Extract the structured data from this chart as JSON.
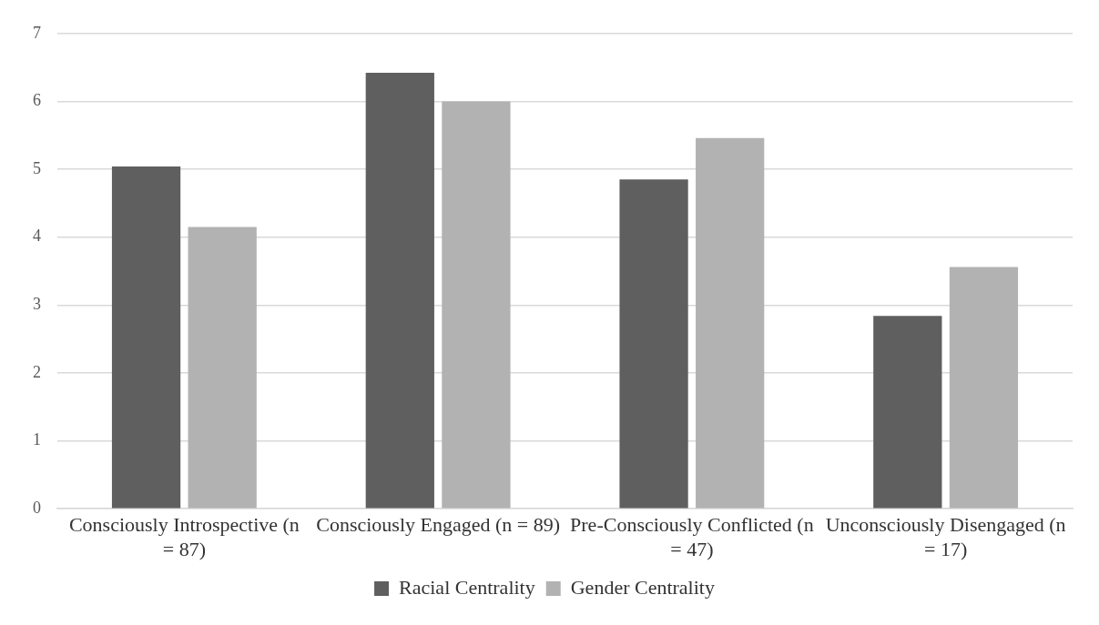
{
  "chart_data": {
    "type": "bar",
    "categories": [
      "Consciously Introspective (n = 87)",
      "Consciously Engaged (n = 89)",
      "Pre-Consciously Conflicted (n = 47)",
      "Unconsciously Disengaged (n = 17)"
    ],
    "series": [
      {
        "name": "Racial Centrality",
        "color": "#5f5f5f",
        "values": [
          5.04,
          6.42,
          4.85,
          2.84
        ]
      },
      {
        "name": "Gender Centrality",
        "color": "#b2b2b2",
        "values": [
          4.15,
          6.0,
          5.46,
          3.56
        ]
      }
    ],
    "ylim": [
      0,
      7
    ],
    "yticks": [
      0,
      1,
      2,
      3,
      4,
      5,
      6,
      7
    ],
    "grid": "y",
    "legend": "bottom"
  }
}
